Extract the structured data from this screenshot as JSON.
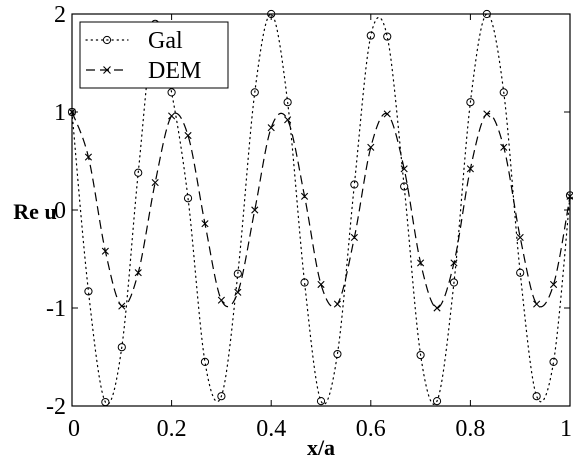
{
  "chart_data": {
    "type": "line",
    "title": "",
    "xlabel": "x/a",
    "ylabel": "Re u",
    "xlim": [
      0,
      1
    ],
    "ylim": [
      -2,
      2
    ],
    "xticks": [
      "0",
      "0.2",
      "0.4",
      "0.6",
      "0.8",
      "1"
    ],
    "yticks": [
      "-2",
      "-1",
      "0",
      "1",
      "2"
    ],
    "grid": false,
    "legend": {
      "position": "top-left"
    },
    "series": [
      {
        "name": "Gal",
        "style": "dotted line with circle markers",
        "color": "#000000",
        "x": [
          0.0,
          0.033,
          0.067,
          0.1,
          0.133,
          0.167,
          0.2,
          0.233,
          0.267,
          0.3,
          0.333,
          0.367,
          0.4,
          0.433,
          0.467,
          0.5,
          0.533,
          0.567,
          0.6,
          0.633,
          0.667,
          0.7,
          0.733,
          0.767,
          0.8,
          0.833,
          0.867,
          0.9,
          0.933,
          0.967,
          1.0
        ],
        "y": [
          1.0,
          -0.83,
          -1.96,
          -1.4,
          0.38,
          1.9,
          1.2,
          0.12,
          -1.55,
          -1.9,
          -0.65,
          1.2,
          2.0,
          1.1,
          -0.74,
          -1.95,
          -1.47,
          0.26,
          1.78,
          1.77,
          0.24,
          -1.48,
          -1.95,
          -0.74,
          1.1,
          2.0,
          1.2,
          -0.64,
          -1.9,
          -1.55,
          0.15
        ]
      },
      {
        "name": "DEM",
        "style": "dashed line with x markers",
        "color": "#000000",
        "x": [
          0.0,
          0.033,
          0.067,
          0.1,
          0.133,
          0.167,
          0.2,
          0.233,
          0.267,
          0.3,
          0.333,
          0.367,
          0.4,
          0.433,
          0.467,
          0.5,
          0.533,
          0.567,
          0.6,
          0.633,
          0.667,
          0.7,
          0.733,
          0.767,
          0.8,
          0.833,
          0.867,
          0.9,
          0.933,
          0.967,
          1.0
        ],
        "y": [
          1.0,
          0.54,
          -0.42,
          -0.98,
          -0.64,
          0.28,
          0.96,
          0.76,
          -0.14,
          -0.92,
          -0.84,
          0.0,
          0.84,
          0.92,
          0.14,
          -0.76,
          -0.96,
          -0.28,
          0.64,
          0.98,
          0.42,
          -0.54,
          -1.0,
          -0.54,
          0.42,
          0.98,
          0.64,
          -0.28,
          -0.96,
          -0.76,
          0.14
        ]
      }
    ]
  }
}
